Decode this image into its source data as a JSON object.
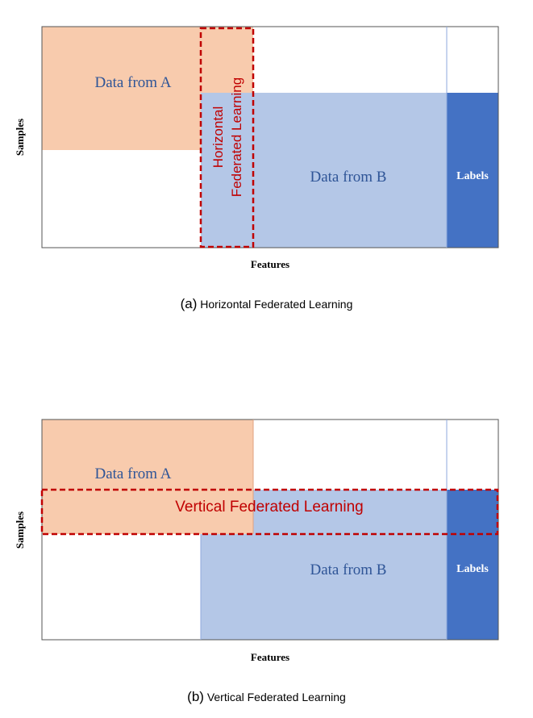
{
  "panels": [
    {
      "id": "a",
      "tag": "(a)",
      "caption": "Horizontal Federated Learning",
      "data_a_label": "Data from A",
      "data_b_label": "Data from B",
      "labels_label": "Labels",
      "overlap_label_line1": "Horizontal",
      "overlap_label_line2": "Federated Learning",
      "x_axis": "Features",
      "y_axis": "Samples"
    },
    {
      "id": "b",
      "tag": "(b)",
      "caption": "Vertical Federated Learning",
      "data_a_label": "Data from A",
      "data_b_label": "Data from B",
      "labels_label": "Labels",
      "overlap_label": "Vertical Federated Learning",
      "x_axis": "Features",
      "y_axis": "Samples"
    }
  ],
  "colors": {
    "data_a": "#f8cbad",
    "data_b": "#b4c7e7",
    "labels": "#4472c4",
    "dashed": "#c00000",
    "label_text": "#2f5597",
    "overlap_text": "#c00000"
  }
}
